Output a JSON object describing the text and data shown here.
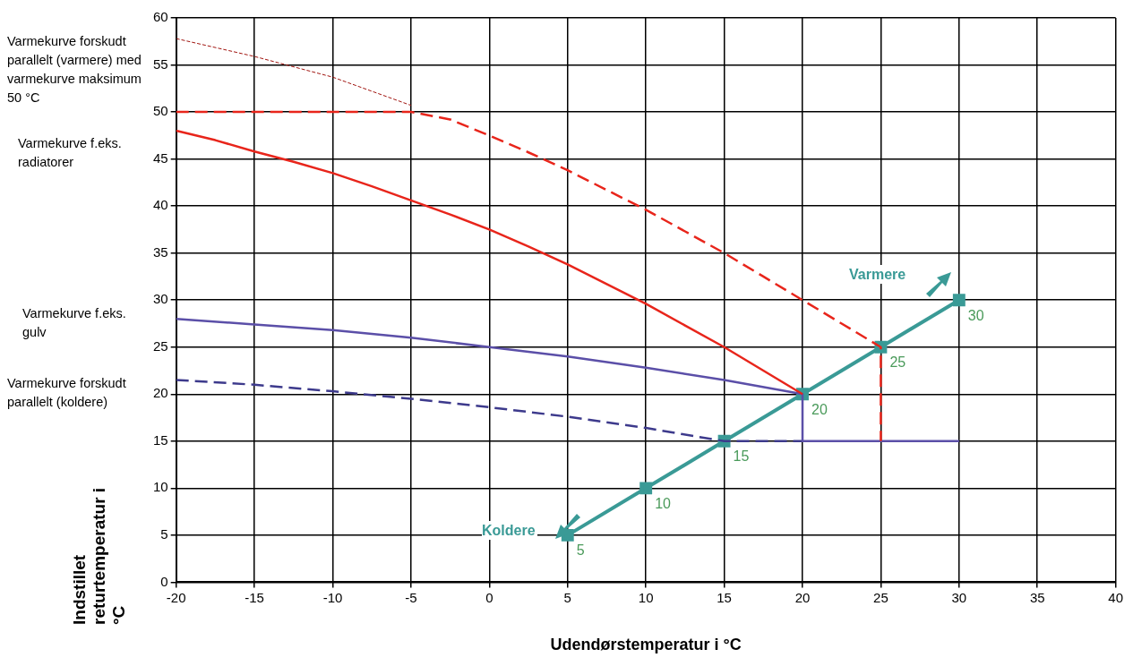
{
  "chart_data": {
    "type": "line",
    "xlabel": "Udendørstemperatur i °C",
    "ylabel": "Indstillet returtemperatur i °C",
    "xlim": [
      -20,
      40
    ],
    "xticks": [
      -20,
      -15,
      -10,
      -5,
      0,
      5,
      10,
      15,
      20,
      25,
      30,
      35,
      40
    ],
    "ylim": [
      0,
      60
    ],
    "yticks": [
      0,
      5,
      10,
      15,
      20,
      25,
      30,
      35,
      40,
      45,
      50,
      55,
      60
    ],
    "grid": true,
    "legend": false,
    "annotations": [
      "Varmekurve forskudt parallelt (varmere) med varmekurve maksimum 50 °C",
      "Varmekurve f.eks. radiatorer",
      "Varmekurve f.eks. gulv",
      "Varmekurve forskudt parallelt (koldere)",
      "Varmere",
      "Koldere"
    ],
    "series": [
      {
        "color": "#a0140f",
        "line_style": "dotted",
        "marker": "none",
        "x": [
          -20,
          -15,
          -10,
          -5
        ],
        "values": [
          57.8,
          55.9,
          53.7,
          50.7
        ]
      },
      {
        "color": "#e8251b",
        "line_style": "dashed",
        "marker": "none",
        "x": [
          -20,
          -5,
          -2.5,
          0,
          2.5,
          5,
          7.5,
          10,
          12.5,
          15,
          17.5,
          20,
          22.5,
          25,
          25
        ],
        "values": [
          50,
          50,
          49.2,
          47.5,
          45.7,
          43.8,
          41.7,
          39.6,
          37.3,
          35,
          32.5,
          30,
          27.5,
          25,
          15
        ]
      },
      {
        "color": "#e8251b",
        "line_style": "solid",
        "marker": "none",
        "x": [
          -20,
          -17.5,
          -15,
          -12.5,
          -10,
          -7.5,
          -5,
          -2.5,
          0,
          2.5,
          5,
          7.5,
          10,
          12.5,
          15,
          17.5,
          20
        ],
        "values": [
          48,
          47,
          45.8,
          44.7,
          43.5,
          42.1,
          40.6,
          39.1,
          37.5,
          35.7,
          33.8,
          31.7,
          29.6,
          27.3,
          25,
          22.5,
          20
        ]
      },
      {
        "color": "#5b4fa8",
        "line_style": "solid",
        "marker": "none",
        "x": [
          -20,
          -15,
          -10,
          -5,
          0,
          5,
          10,
          15,
          20,
          20,
          30
        ],
        "values": [
          28,
          27.4,
          26.8,
          26,
          25,
          24,
          22.8,
          21.5,
          20,
          15,
          15
        ]
      },
      {
        "color": "#3d3a8c",
        "line_style": "dashed",
        "marker": "none",
        "x": [
          -20,
          -15,
          -10,
          -5,
          0,
          5,
          10,
          15,
          20
        ],
        "values": [
          21.5,
          21,
          20.3,
          19.5,
          18.6,
          17.6,
          16.4,
          15,
          15
        ]
      },
      {
        "color": "#3a9a96",
        "line_style": "solid",
        "marker": "square",
        "x": [
          5,
          10,
          15,
          20,
          25,
          30
        ],
        "values": [
          5,
          10,
          15,
          20,
          25,
          30
        ],
        "value_labels": [
          "5",
          "10",
          "15",
          "20",
          "25",
          "30"
        ]
      }
    ]
  }
}
